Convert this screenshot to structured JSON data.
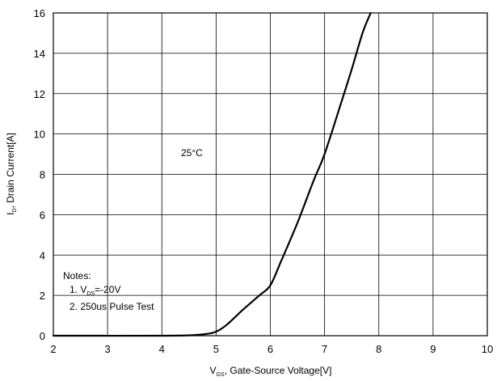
{
  "chart_data": {
    "type": "line",
    "xlabel": {
      "main": "V",
      "sub": "GS",
      "rest": ", Gate-Source Voltage[V]"
    },
    "ylabel": {
      "main": "I",
      "sub": "D",
      "rest": ", Drain Current[A]"
    },
    "xlim": [
      2,
      10
    ],
    "ylim": [
      0,
      16
    ],
    "x_ticks": [
      2,
      3,
      4,
      5,
      6,
      7,
      8,
      9,
      10
    ],
    "y_ticks": [
      0,
      2,
      4,
      6,
      8,
      10,
      12,
      14,
      16
    ],
    "grid": true,
    "annotations": {
      "temperature": "25°C",
      "notes_title": "Notes:",
      "note1": {
        "prefix": "1. V",
        "sub": "DS",
        "suffix": "=-20V"
      },
      "note2": "2. 250us Pulse Test"
    },
    "series": [
      {
        "x": [
          2.0,
          4.0,
          4.5,
          4.8,
          5.0,
          5.2,
          5.5,
          5.8,
          6.0,
          6.2,
          6.5,
          6.8,
          7.0,
          7.3,
          7.5,
          7.7,
          7.85
        ],
        "y": [
          0.0,
          0.0,
          0.02,
          0.08,
          0.2,
          0.55,
          1.3,
          2.0,
          2.5,
          3.7,
          5.6,
          7.7,
          9.0,
          11.5,
          13.2,
          15.0,
          16.0
        ]
      }
    ]
  }
}
